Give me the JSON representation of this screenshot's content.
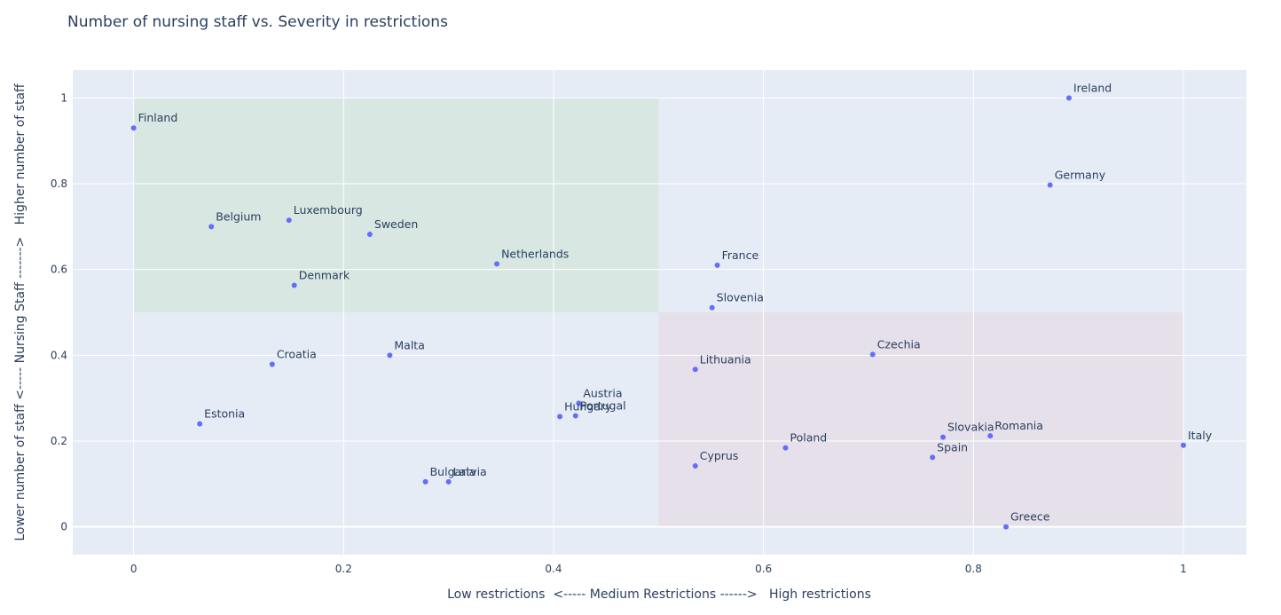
{
  "chart_data": {
    "type": "scatter",
    "title": "Number of nursing staff vs. Severity in restrictions",
    "xlabel": "Low restrictions  <----- Medium Restrictions ------>   High restrictions",
    "ylabel": "Lower number of staff <----- Nursing Staff ------->   Higher number of staff",
    "xlim": [
      -0.058,
      1.06
    ],
    "ylim": [
      -0.065,
      1.065
    ],
    "x_ticks": [
      0,
      0.2,
      0.4,
      0.6,
      0.8,
      1
    ],
    "y_ticks": [
      0,
      0.2,
      0.4,
      0.6,
      0.8,
      1
    ],
    "x_tick_labels": [
      "0",
      "0.2",
      "0.4",
      "0.6",
      "0.8",
      "1"
    ],
    "y_tick_labels": [
      "0",
      "0.2",
      "0.4",
      "0.6",
      "0.8",
      "1"
    ],
    "grid": true,
    "marker_color": "#636efa",
    "plot_background": "#e5ecf6",
    "regions": [
      {
        "x": [
          0,
          0.5
        ],
        "y": [
          0.5,
          1
        ],
        "color": "#d9e7e2"
      },
      {
        "x": [
          0.5,
          1
        ],
        "y": [
          0,
          0.5
        ],
        "color": "#e6e0ea"
      }
    ],
    "points": [
      {
        "label": "Finland",
        "x": 0.0,
        "y": 0.93
      },
      {
        "label": "Belgium",
        "x": 0.074,
        "y": 0.7
      },
      {
        "label": "Luxembourg",
        "x": 0.148,
        "y": 0.715
      },
      {
        "label": "Sweden",
        "x": 0.225,
        "y": 0.682
      },
      {
        "label": "Denmark",
        "x": 0.153,
        "y": 0.563
      },
      {
        "label": "Netherlands",
        "x": 0.346,
        "y": 0.613
      },
      {
        "label": "France",
        "x": 0.556,
        "y": 0.61
      },
      {
        "label": "Slovenia",
        "x": 0.551,
        "y": 0.511
      },
      {
        "label": "Ireland",
        "x": 0.891,
        "y": 1.0
      },
      {
        "label": "Germany",
        "x": 0.873,
        "y": 0.797
      },
      {
        "label": "Croatia",
        "x": 0.132,
        "y": 0.379
      },
      {
        "label": "Malta",
        "x": 0.244,
        "y": 0.4
      },
      {
        "label": "Estonia",
        "x": 0.063,
        "y": 0.24
      },
      {
        "label": "Lithuania",
        "x": 0.535,
        "y": 0.367
      },
      {
        "label": "Czechia",
        "x": 0.704,
        "y": 0.402
      },
      {
        "label": "Austria",
        "x": 0.424,
        "y": 0.288
      },
      {
        "label": "Hungary",
        "x": 0.406,
        "y": 0.257
      },
      {
        "label": "Portugal",
        "x": 0.421,
        "y": 0.259
      },
      {
        "label": "Slovakia",
        "x": 0.771,
        "y": 0.209
      },
      {
        "label": "Romania",
        "x": 0.816,
        "y": 0.212
      },
      {
        "label": "Spain",
        "x": 0.761,
        "y": 0.162
      },
      {
        "label": "Poland",
        "x": 0.621,
        "y": 0.184
      },
      {
        "label": "Cyprus",
        "x": 0.535,
        "y": 0.142
      },
      {
        "label": "Italy",
        "x": 1.0,
        "y": 0.19
      },
      {
        "label": "Greece",
        "x": 0.831,
        "y": 0.0
      },
      {
        "label": "Bulgaria",
        "x": 0.278,
        "y": 0.105
      },
      {
        "label": "Latvia",
        "x": 0.3,
        "y": 0.105
      }
    ]
  }
}
